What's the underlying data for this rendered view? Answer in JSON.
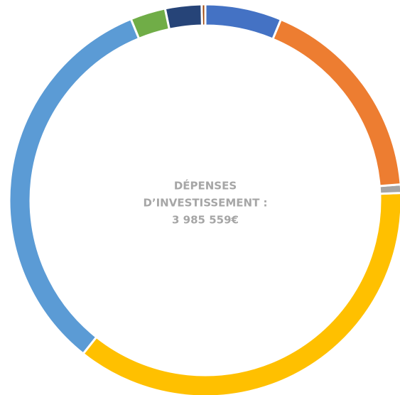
{
  "chart_data": {
    "type": "donut",
    "center_text": [
      "DÉPENSES",
      "D’INVESTISSEMENT :",
      "3 985 559€"
    ],
    "values": [
      6.3,
      17.4,
      0.7,
      36.3,
      33.1,
      2.9,
      3.0,
      0.3
    ],
    "colors": [
      "#4472c4",
      "#ed7d31",
      "#a5a5a5",
      "#ffc000",
      "#5b9bd5",
      "#70ad47",
      "#264478",
      "#9e480e"
    ]
  }
}
